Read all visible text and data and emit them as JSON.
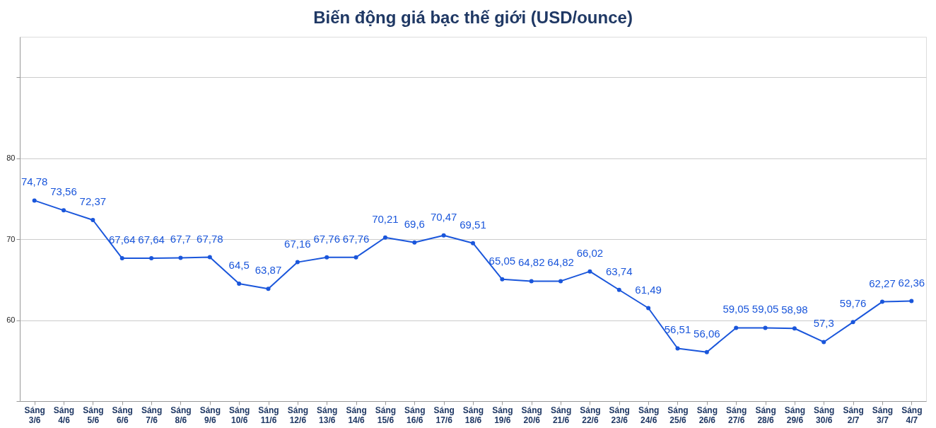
{
  "chart_data": {
    "type": "line",
    "title": "Biến động giá bạc thế giới (USD/ounce)",
    "categories": [
      "Sáng 3/6",
      "Sáng 4/6",
      "Sáng 5/6",
      "Sáng 6/6",
      "Sáng 7/6",
      "Sáng 8/6",
      "Sáng 9/6",
      "Sáng 10/6",
      "Sáng 11/6",
      "Sáng 12/6",
      "Sáng 13/6",
      "Sáng 14/6",
      "Sáng 15/6",
      "Sáng 16/6",
      "Sáng 17/6",
      "Sáng 18/6",
      "Sáng 19/6",
      "Sáng 20/6",
      "Sáng 21/6",
      "Sáng 22/6",
      "Sáng 23/6",
      "Sáng 24/6",
      "Sáng 25/6",
      "Sáng 26/6",
      "Sáng 27/6",
      "Sáng 28/6",
      "Sáng 29/6",
      "Sáng 30/6",
      "Sáng 2/7",
      "Sáng 3/7",
      "Sáng 4/7"
    ],
    "series": [
      {
        "color": "#1a56db",
        "values": [
          74.78,
          73.56,
          72.37,
          67.64,
          67.64,
          67.7,
          67.78,
          64.5,
          63.87,
          67.16,
          67.76,
          67.76,
          70.21,
          69.6,
          70.47,
          69.51,
          65.05,
          64.82,
          64.82,
          66.02,
          63.74,
          61.49,
          56.51,
          56.06,
          59.05,
          59.05,
          58.98,
          57.3,
          59.76,
          62.27,
          62.36
        ],
        "value_labels": [
          "74,78",
          "73,56",
          "72,37",
          "67,64",
          "67,64",
          "67,7",
          "67,78",
          "64,5",
          "63,87",
          "67,16",
          "67,76",
          "67,76",
          "70,21",
          "69,6",
          "70,47",
          "69,51",
          "65,05",
          "64,82",
          "64,82",
          "66,02",
          "63,74",
          "61,49",
          "56,51",
          "56,06",
          "59,05",
          "59,05",
          "58,98",
          "57,3",
          "59,76",
          "62,27",
          "62,36"
        ]
      }
    ],
    "ylim": [
      50,
      95
    ],
    "yticks": [
      {
        "value": 50,
        "label": null
      },
      60,
      70,
      80,
      {
        "value": 90,
        "label": null
      }
    ],
    "grid": "y",
    "marker": "circle",
    "line_style": "solid"
  }
}
